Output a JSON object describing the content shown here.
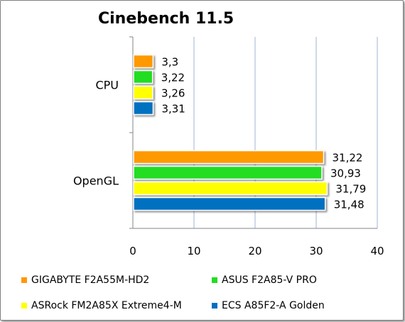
{
  "chart_data": {
    "type": "bar",
    "orientation": "horizontal",
    "title": "Cinebench 11.5",
    "categories": [
      "CPU",
      "OpenGL"
    ],
    "series": [
      {
        "name": "GIGABYTE F2A55M-HD2",
        "color": "#ff9900",
        "values": [
          3.3,
          31.22
        ],
        "labels": [
          "3,3",
          "31,22"
        ]
      },
      {
        "name": "ASUS F2A85-V PRO",
        "color": "#22dd22",
        "values": [
          3.22,
          30.93
        ],
        "labels": [
          "3,22",
          "30,93"
        ]
      },
      {
        "name": "ASRock FM2A85X Extreme4-M",
        "color": "#ffff00",
        "values": [
          3.26,
          31.79
        ],
        "labels": [
          "3,26",
          "31,79"
        ]
      },
      {
        "name": "ECS A85F2-A Golden",
        "color": "#0070c0",
        "values": [
          3.31,
          31.48
        ],
        "labels": [
          "3,31",
          "31,48"
        ]
      }
    ],
    "xlim": [
      0,
      40
    ],
    "xticks": [
      "0",
      "10",
      "20",
      "30",
      "40"
    ],
    "grid": true,
    "legend_position": "bottom"
  }
}
